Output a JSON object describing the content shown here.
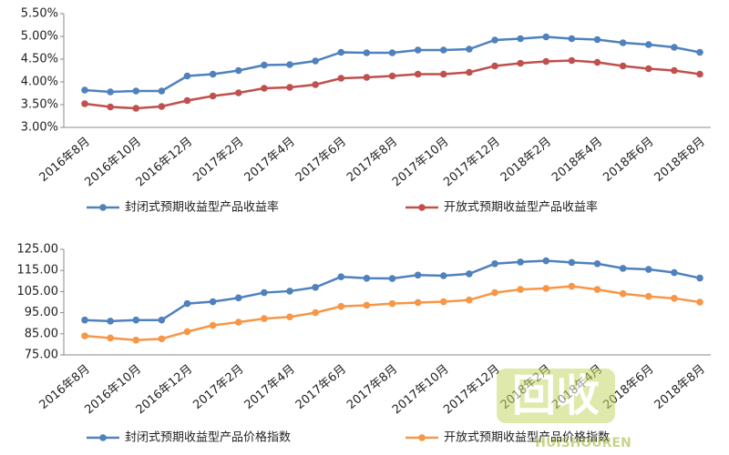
{
  "chart_data": [
    {
      "type": "line",
      "categories": [
        "2016年8月",
        null,
        "2016年10月",
        null,
        "2016年12月",
        null,
        "2017年2月",
        null,
        "2017年4月",
        null,
        "2017年6月",
        null,
        "2017年8月",
        null,
        "2017年10月",
        null,
        "2017年12月",
        null,
        "2018年2月",
        null,
        "2018年4月",
        null,
        "2018年6月",
        null,
        "2018年8月"
      ],
      "series": [
        {
          "name": "封闭式预期收益型产品收益率",
          "color": "#4f81bd",
          "values": [
            3.82,
            3.78,
            3.8,
            3.8,
            4.13,
            4.17,
            4.25,
            4.37,
            4.38,
            4.46,
            4.65,
            4.64,
            4.64,
            4.7,
            4.7,
            4.72,
            4.92,
            4.95,
            4.99,
            4.95,
            4.93,
            4.86,
            4.82,
            4.76,
            4.65
          ]
        },
        {
          "name": "开放式预期收益型产品收益率",
          "color": "#c0504d",
          "values": [
            3.52,
            3.45,
            3.42,
            3.46,
            3.59,
            3.69,
            3.76,
            3.86,
            3.88,
            3.94,
            4.08,
            4.1,
            4.13,
            4.17,
            4.17,
            4.21,
            4.35,
            4.41,
            4.45,
            4.47,
            4.43,
            4.35,
            4.29,
            4.25,
            4.17
          ]
        }
      ],
      "ylim": [
        3.0,
        5.5
      ],
      "yticks": [
        {
          "value": 3.0,
          "label": "3.00%"
        },
        {
          "value": 3.5,
          "label": "3.50%"
        },
        {
          "value": 4.0,
          "label": "4.00%"
        },
        {
          "value": 4.5,
          "label": "4.50%"
        },
        {
          "value": 5.0,
          "label": "5.00%"
        },
        {
          "value": 5.5,
          "label": "5.50%"
        }
      ],
      "grid": false
    },
    {
      "type": "line",
      "categories": [
        "2016年8月",
        null,
        "2016年10月",
        null,
        "2016年12月",
        null,
        "2017年2月",
        null,
        "2017年4月",
        null,
        "2017年6月",
        null,
        "2017年8月",
        null,
        "2017年10月",
        null,
        "2017年12月",
        null,
        "2018年2月",
        null,
        "2018年4月",
        null,
        "2018年6月",
        null,
        "2018年8月"
      ],
      "series": [
        {
          "name": "封闭式预期收益型产品价格指数",
          "color": "#4f81bd",
          "values": [
            91.5,
            91,
            91.5,
            91.5,
            99.3,
            100.2,
            102,
            104.5,
            105.2,
            107,
            112,
            111.3,
            111.2,
            112.8,
            112.5,
            113.4,
            118.2,
            119,
            119.6,
            118.8,
            118.2,
            116,
            115.5,
            114,
            111.4
          ]
        },
        {
          "name": "开放式预期收益型产品价格指数",
          "color": "#f79646",
          "values": [
            84,
            83,
            82,
            82.6,
            86,
            89,
            90.5,
            92.2,
            93,
            95,
            98,
            98.5,
            99.3,
            99.8,
            100.2,
            101,
            104.5,
            106,
            106.5,
            107.5,
            106,
            104,
            102.7,
            101.8,
            100
          ]
        }
      ],
      "ylim": [
        75,
        125
      ],
      "yticks": [
        {
          "value": 75,
          "label": "75.00"
        },
        {
          "value": 85,
          "label": "85.00"
        },
        {
          "value": 95,
          "label": "95.00"
        },
        {
          "value": 105,
          "label": "105.00"
        },
        {
          "value": 115,
          "label": "115.00"
        },
        {
          "value": 125,
          "label": "125.00"
        }
      ],
      "grid": false
    }
  ],
  "watermark": {
    "text": "回收",
    "sub": "HUISHOUREN"
  }
}
